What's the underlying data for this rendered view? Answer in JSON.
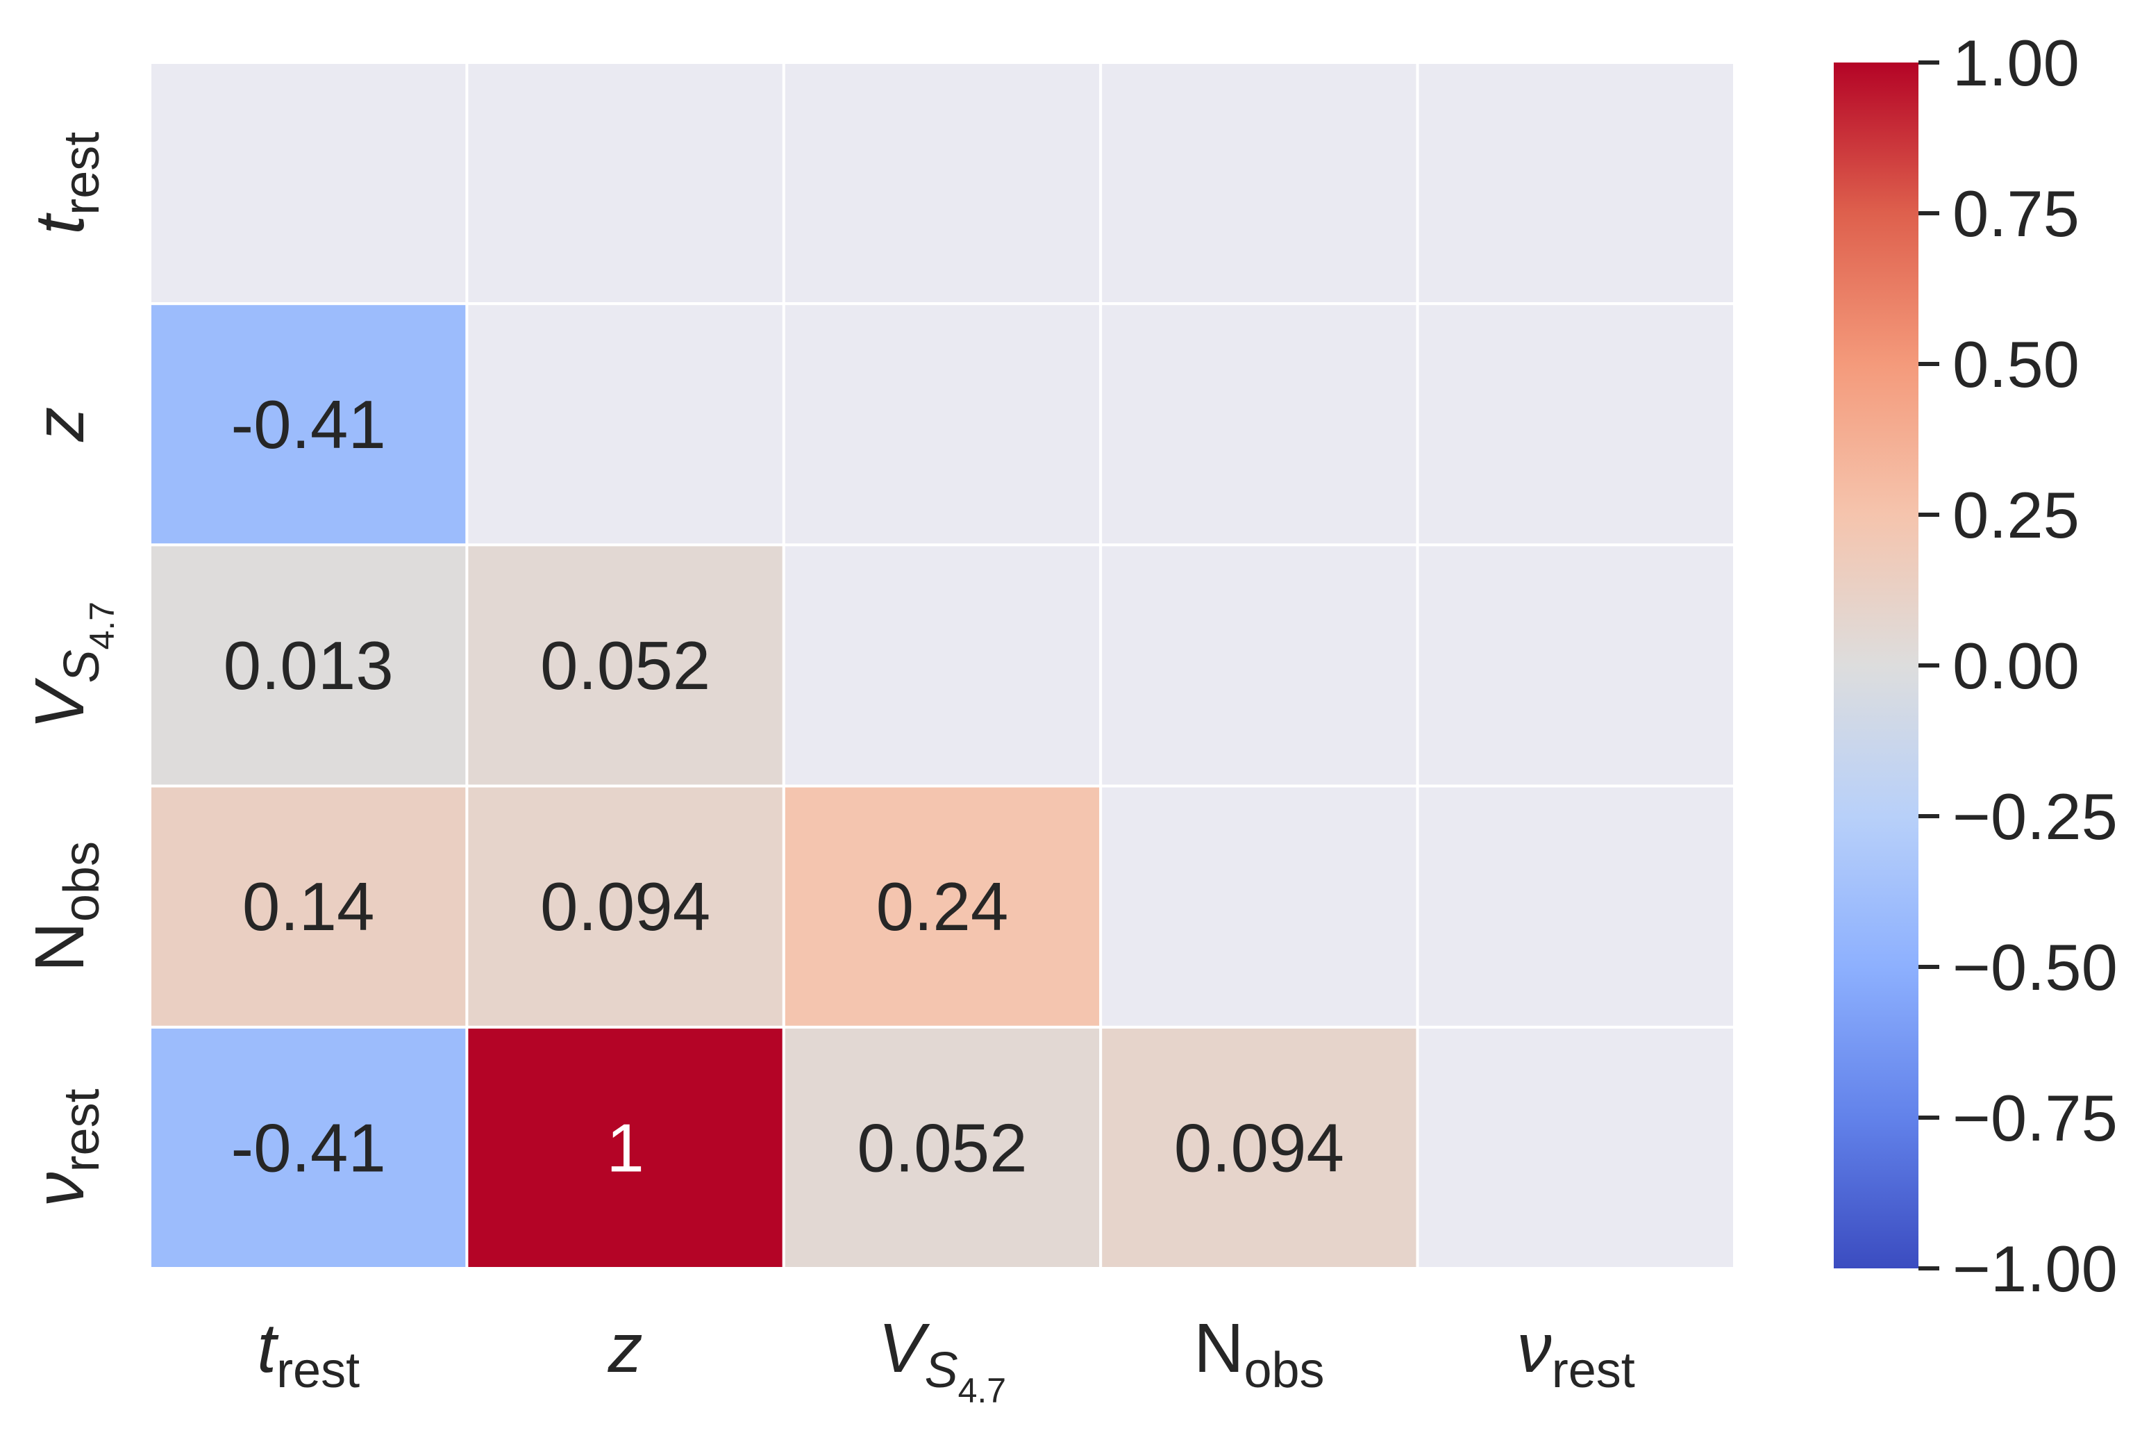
{
  "chart_data": {
    "type": "heatmap",
    "colormap": "coolwarm",
    "labels": [
      {
        "base": "t",
        "sub": "rest",
        "italic": true
      },
      {
        "base": "z",
        "italic": true
      },
      {
        "base": "V",
        "sub": "S",
        "subsub": "4.7",
        "italic": true
      },
      {
        "base": "N",
        "sub": "obs",
        "italic": false
      },
      {
        "base": "ν",
        "sub": "rest",
        "italic": true
      }
    ],
    "values": [
      [
        null,
        null,
        null,
        null,
        null
      ],
      [
        -0.41,
        null,
        null,
        null,
        null
      ],
      [
        0.013,
        0.052,
        null,
        null,
        null
      ],
      [
        0.14,
        0.094,
        0.24,
        null,
        null
      ],
      [
        -0.41,
        1,
        0.052,
        0.094,
        null
      ]
    ],
    "clim": [
      -1,
      1
    ],
    "cticks": [
      {
        "value": 1,
        "label": "1.00"
      },
      {
        "value": 0.75,
        "label": "0.75"
      },
      {
        "value": 0.5,
        "label": "0.50"
      },
      {
        "value": 0.25,
        "label": "0.25"
      },
      {
        "value": 0,
        "label": "0.00"
      },
      {
        "value": -0.25,
        "label": "−0.25"
      },
      {
        "value": -0.5,
        "label": "−0.50"
      },
      {
        "value": -0.75,
        "label": "−0.75"
      },
      {
        "value": -1,
        "label": "−1.00"
      }
    ],
    "mask_color": "#eaeaf2"
  }
}
